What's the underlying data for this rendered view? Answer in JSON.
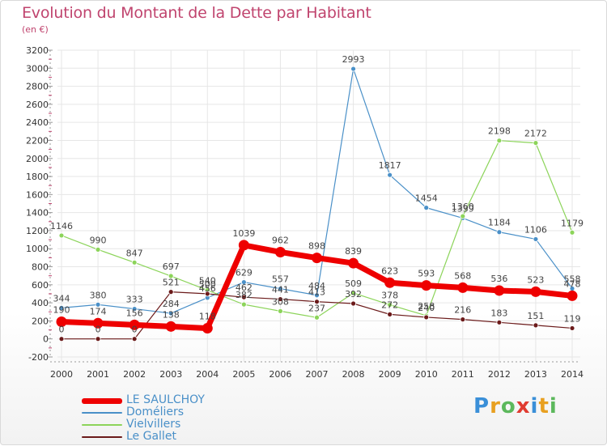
{
  "title": "Evolution du Montant de la Dette par Habitant",
  "subtitle": "(en €)",
  "logo": {
    "text": "Proxiti",
    "letters": [
      {
        "ch": "P",
        "color": "#3a8fd8"
      },
      {
        "ch": "r",
        "color": "#e8a020"
      },
      {
        "ch": "o",
        "color": "#5cb85c"
      },
      {
        "ch": "x",
        "color": "#e03c31"
      },
      {
        "ch": "i",
        "color": "#3a8fd8"
      },
      {
        "ch": "t",
        "color": "#e8a020"
      },
      {
        "ch": "i",
        "color": "#5cb85c"
      }
    ]
  },
  "chart_data": {
    "type": "line",
    "title": "Evolution du Montant de la Dette par Habitant",
    "subtitle": "(en €)",
    "xlabel": "",
    "ylabel": "",
    "ylim": [
      -200,
      3200
    ],
    "yticks": [
      -200,
      0,
      200,
      400,
      600,
      800,
      1000,
      1200,
      1400,
      1600,
      1800,
      2000,
      2200,
      2400,
      2600,
      2800,
      3000,
      3200
    ],
    "categories": [
      "2000",
      "2001",
      "2002",
      "2003",
      "2004",
      "2005",
      "2006",
      "2007",
      "2008",
      "2009",
      "2010",
      "2011",
      "2012",
      "2013",
      "2014"
    ],
    "grid": true,
    "legend_position": "bottom-left",
    "series": [
      {
        "name": "LE SAULCHOY",
        "color": "#ee0000",
        "values": [
          190,
          174,
          156,
          138,
          118,
          1039,
          962,
          898,
          839,
          623,
          593,
          568,
          536,
          523,
          478
        ]
      },
      {
        "name": "Doméliers",
        "color": "#4a90c8",
        "values": [
          344,
          380,
          333,
          284,
          456,
          629,
          557,
          484,
          2993,
          1817,
          1454,
          1339,
          1184,
          1106,
          558
        ]
      },
      {
        "name": "Vielvillers",
        "color": "#8cd45a",
        "values": [
          1146,
          990,
          847,
          697,
          540,
          382,
          308,
          237,
          509,
          378,
          258,
          1360,
          2198,
          2172,
          1179
        ]
      },
      {
        "name": "Le Gallet",
        "color": "#6b1a1a",
        "values": [
          0,
          0,
          0,
          521,
          500,
          462,
          441,
          413,
          392,
          272,
          240,
          216,
          183,
          151,
          119
        ]
      }
    ]
  }
}
